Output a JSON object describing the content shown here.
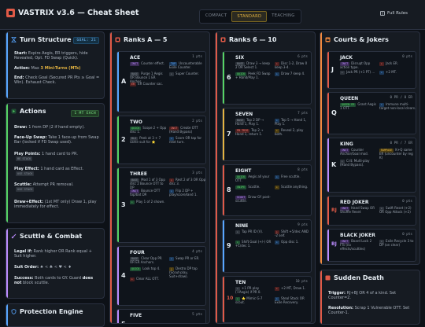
{
  "header": {
    "title": "VASTRIX v3.6 — Cheat Sheet",
    "modes": [
      "COMPACT",
      "STANDARD",
      "TEACHING"
    ],
    "active_mode": "STANDARD",
    "full_rules": "Full Rules"
  },
  "turn": {
    "title": "Turn Structure",
    "badge": "GOAL: 21",
    "start_k": "Start:",
    "start": "Expire Aegis, ER triggers, hide Revealed, Opt. FD Swap (Quick).",
    "action_k": "Action:",
    "action_pre": "Max",
    "action_y": "3 Mini-Turns (MTs)",
    "end_k": "End:",
    "end": "Check Goal (Secured PR Pts ≥ Goal = Win). Exhaust Check."
  },
  "actions": {
    "title": "Actions",
    "badge": "1 MT EACH",
    "items": [
      {
        "k": "Draw:",
        "t": "1 from DP (2 if hand empty)."
      },
      {
        "k": "Face-Up Swap:",
        "t": "Take 1 face-up from Swap Bar (locked if FD Swap used)."
      },
      {
        "k": "Play Points:",
        "t": "1 hand card to PR.",
        "chip": "BE STACK"
      },
      {
        "k": "Play Effect:",
        "t": "1 hand card as Effect.",
        "chip": "USE STACK"
      },
      {
        "k": "Scuttle:",
        "t": "Attempt PR removal.",
        "chip": "USE STACK"
      },
      {
        "k": "Draw+Effect:",
        "t": "(1st MT only) Draw 1, play immediately for effect."
      }
    ]
  },
  "scuttle": {
    "title": "Scuttle & Combat",
    "legal_k": "Legal if:",
    "legal": "Rank higher OR Rank equal + Suit higher.",
    "suit_k": "Suit Order:",
    "suit": "♠ < ♣ < ♥ < ♦",
    "success_k": "Success:",
    "success_pre": "Both cards to GY. Guard",
    "success_b": "does not",
    "success_post": "block scuttle."
  },
  "protection": {
    "title": "Protection Engine"
  },
  "ranks1": {
    "title": "Ranks A — 5",
    "cards": [
      {
        "name": "ACE",
        "letter": "A",
        "pts": "1 pts",
        "lines": [
          [
            "inst",
            "INST",
            "Counter effect."
          ],
          [
            "base",
            "BASE",
            "Purge 1 Aegis OR Bounce 1 ER Anchor."
          ],
          [
            "react",
            "ER",
            "ER Counter sac."
          ],
          [
            "hold",
            "TOP",
            "Uncounterable Exile Counter."
          ],
          [
            "base",
            "",
            "Super Counter."
          ]
        ]
      },
      {
        "name": "TWO",
        "letter": "2",
        "pts": "2 pts",
        "lines": [
          [
            "quick",
            "QUICK",
            "Scope 2 + Opp disc 1."
          ],
          [
            "base",
            "BLG",
            "Peek at 3 + 7 same suit for ⭐"
          ],
          [
            "react",
            "INST",
            "Create OTT (Hand Bypass)"
          ],
          [
            "hold",
            "",
            "Score OR tap for next turn."
          ]
        ]
      },
      {
        "name": "THREE",
        "letter": "3",
        "pts": "3 pts",
        "lines": [
          [
            "base",
            "BASE",
            "Mod 1 of 3 Opp disc 2 Bounce OTT to DP"
          ],
          [
            "inst",
            "INST",
            "Bounce OTT top/bot DP."
          ],
          [
            "quick",
            "",
            "Play 1 of 2 shown."
          ],
          [
            "react",
            "",
            "Rest 2 of 3 OR Opp disc 3."
          ],
          [
            "hold",
            "",
            "Flip 2 DP + play/score/land 1."
          ]
        ]
      },
      {
        "name": "FOUR",
        "letter": "4",
        "pts": "4 pts",
        "lines": [
          [
            "base",
            "BASE",
            "Clear Opp PR OR ER Anchors."
          ],
          [
            "quick",
            "QUICK",
            "Look top 4."
          ],
          [
            "react",
            "",
            "Clear ALL OTT."
          ],
          [
            "hold",
            "",
            "Swap PR or ER."
          ],
          [
            "gate",
            "",
            "Destro DP top (Scout-play, Suit+draw)."
          ]
        ]
      },
      {
        "name": "FIVE",
        "letter": "5",
        "pts": "5 pts",
        "lines": []
      }
    ]
  },
  "ranks2": {
    "title": "Ranks 6 — 10",
    "cards": [
      {
        "name": "SIX",
        "letter": "6",
        "pts": "6 pts",
        "lines": [
          [
            "base",
            "BASE",
            "Draw 3 → keep 2 OR Select 1."
          ],
          [
            "quick",
            "QUICK",
            "Peek FD Swap + Hand/Play 1."
          ],
          [
            "react",
            "",
            "Disc 1-2, Draw 0 keep 3-4."
          ],
          [
            "hold",
            "",
            "Draw 7 keep 4."
          ]
        ]
      },
      {
        "name": "SEVEN",
        "letter": "7",
        "pts": "7 pts",
        "lines": [
          [
            "base",
            "BASE",
            "Top 2 DP → Hand 1, Play 1."
          ],
          [
            "react",
            "PB TRIG",
            "Top 2 → Hand 1, return 1."
          ],
          [
            "hold",
            "",
            "Top 5 → Hand 1, Play 1."
          ],
          [
            "gate",
            "",
            "Reveal 2, play both."
          ]
        ]
      },
      {
        "name": "EIGHT",
        "letter": "8",
        "pts": "8 pts",
        "lines": [
          [
            "quick",
            "QUICK",
            "Aegis all your OTT."
          ],
          [
            "snipe",
            "SNIPE",
            "Scuttle."
          ],
          [
            "scout",
            "SCOUT",
            "Draw GY post-scuttle."
          ],
          [
            "hold",
            "",
            "Free scuttle."
          ],
          [
            "gate",
            "",
            "Scuttle anything."
          ]
        ]
      },
      {
        "name": "NINE",
        "letter": "9",
        "pts": "9 pts",
        "lines": [
          [
            "base",
            "",
            "Tap PR ID (V)."
          ],
          [
            "quick",
            "",
            "Shift Goal (+/-) OR +1/dec 1."
          ],
          [
            "react",
            "",
            "Shift +5/dec AND -2 self."
          ],
          [
            "hold",
            "",
            "Opp disc 1."
          ]
        ]
      },
      {
        "name": "TEN",
        "letter": "10",
        "pts": "10 pts",
        "lines": [
          [
            "base",
            "",
            "+1 PR play (+Aegis) if PR 0."
          ],
          [
            "quick",
            "",
            "⭐ Mimic G-7 scout."
          ],
          [
            "react",
            "",
            "+2 MT, Draw 1."
          ],
          [
            "hold",
            "",
            "Steal Stack OR Exile Recovery."
          ]
        ]
      }
    ]
  },
  "courts": {
    "title": "Courts & Jokers",
    "cards": [
      {
        "name": "JACK",
        "letter": "J",
        "pts": "0 pts",
        "lines": [
          [
            "inst",
            "INST",
            "Disrupt Opp action type."
          ],
          [
            "base",
            "",
            "Jack PR (+1 PT) ..."
          ],
          [
            "react",
            "",
            "Jack ER."
          ],
          [
            "hold",
            "",
            "+2 MT."
          ]
        ]
      },
      {
        "name": "QUEEN",
        "letter": "Q",
        "pts": "0 PR / 0 ER",
        "lines": [
          [
            "quick",
            "QUEEN ER",
            "Grant Aegis 1 OTT."
          ],
          [
            "hold",
            "",
            "Immune multi-target non-local clears."
          ]
        ]
      },
      {
        "name": "KING",
        "letter": "K",
        "pts": "0 PR / 7 ER",
        "lines": [
          [
            "inst",
            "INST",
            "Counter Anchor/Goal mod."
          ],
          [
            "base",
            "",
            "Crit: Multi-play (Hand Bypass)."
          ],
          [
            "gate",
            "RAMPAGE",
            "K+Q same ER (uncounter by reg K)"
          ]
        ]
      },
      {
        "name": "RED JOKER",
        "letter": "RJ",
        "pts": "0 pts",
        "lines": [
          [
            "inst",
            "INST",
            "Hand Swap OR Shuffle Reset"
          ],
          [
            "base",
            "",
            "Swift Reset (+2) OR Opp Attack (+2)"
          ]
        ]
      },
      {
        "name": "BLACK JOKER",
        "letter": "BJ",
        "pts": "0 pts",
        "lines": [
          [
            "inst",
            "INST",
            "Board Lock 2 FTs (no effects/scuttles)"
          ],
          [
            "base",
            "",
            "Exile Recycle 3 to DP (on clear)"
          ]
        ]
      }
    ]
  },
  "sudden": {
    "title": "Sudden Death",
    "trigger_k": "Trigger:",
    "trigger": "RJ+BJ OR 4 of a kind. Set Counter=2.",
    "resolution_k": "Resolution:",
    "resolution": "Scrap 1 Vulnerable OTT. Set Counter-1."
  },
  "colors": {
    "red": "#e05a47",
    "gold": "#e3b341",
    "blue": "#58a6ff",
    "green": "#56d364",
    "purple": "#bc8cff",
    "orange": "#f0883e"
  }
}
